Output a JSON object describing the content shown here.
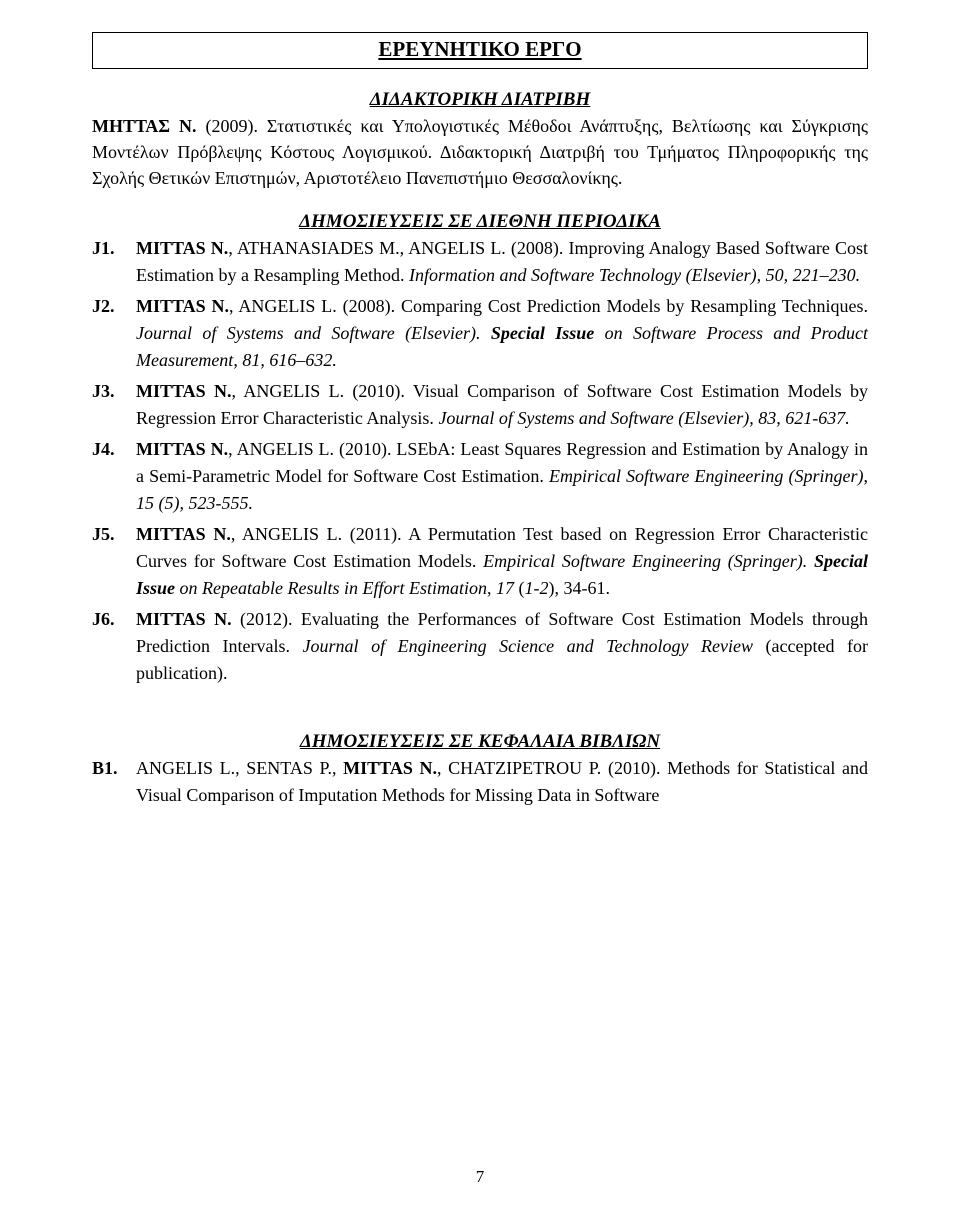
{
  "page_title": "ΕΡΕΥΝΗΤΙΚΟ ΕΡΓΟ",
  "dissertation": {
    "heading": "ΔΙΔΑΚΤΟΡΙΚΗ ΔΙΑΤΡΙΒΗ",
    "author_bold": "ΜΗΤΤΑΣ Ν.",
    "rest": " (2009). Στατιστικές και Υπολογιστικές Μέθοδοι Ανάπτυξης, Βελτίωσης και Σύγκρισης Μοντέλων Πρόβλεψης Κόστους Λογισμικού. Διδακτορική Διατριβή του Τμήματος Πληροφορικής της Σχολής Θετικών Επιστημών, Αριστοτέλειο Πανεπιστήμιο Θεσσαλονίκης."
  },
  "journals": {
    "heading": "ΔΗΜΟΣΙΕΥΣΕΙΣ ΣΕ ΔΙΕΘΝΗ ΠΕΡΙΟΔΙΚΑ",
    "items": [
      {
        "key": "J1.",
        "runs": [
          {
            "t": "MITTAS N.",
            "s": "bold"
          },
          {
            "t": ", ATHANASIADES M., ANGELIS L. (2008). Improving Analogy Based Software Cost Estimation by a Resampling Method. ",
            "s": ""
          },
          {
            "t": "Information and Software Technology (Elsevier), 50, 221–230.",
            "s": "italic"
          }
        ]
      },
      {
        "key": "J2.",
        "runs": [
          {
            "t": "MITTAS N.",
            "s": "bold"
          },
          {
            "t": ", ANGELIS L. (2008). Comparing Cost Prediction Models by Resampling Techniques. ",
            "s": ""
          },
          {
            "t": "Journal of Systems and Software (Elsevier). ",
            "s": "italic"
          },
          {
            "t": "Special Issue",
            "s": "bolditalic"
          },
          {
            "t": " on Software Process and Product Measurement",
            "s": "italic"
          },
          {
            "t": ", ",
            "s": ""
          },
          {
            "t": "81, 616–632.",
            "s": "italic"
          }
        ]
      },
      {
        "key": "J3.",
        "runs": [
          {
            "t": "MITTAS N.",
            "s": "bold"
          },
          {
            "t": ", ANGELIS L. (2010). Visual Comparison of Software Cost Estimation Models by Regression Error Characteristic Analysis. ",
            "s": ""
          },
          {
            "t": "Journal of Systems and Software (Elsevier), 83, 621-637.",
            "s": "italic"
          }
        ]
      },
      {
        "key": "J4.",
        "runs": [
          {
            "t": "MITTAS N.",
            "s": "bold"
          },
          {
            "t": ", ANGELIS L. (2010). LSEbA: Least Squares Regression and Estimation by Analogy in a Semi-Parametric Model for Software Cost Estimation. ",
            "s": ""
          },
          {
            "t": "Empirical Software Engineering (Springer)",
            "s": "italic"
          },
          {
            "t": ", ",
            "s": ""
          },
          {
            "t": "15 (5), 523-555.",
            "s": "italic"
          }
        ]
      },
      {
        "key": "J5.",
        "runs": [
          {
            "t": "MITTAS N.",
            "s": "bold"
          },
          {
            "t": ", ANGELIS L. (2011). A Permutation Test based on Regression Error Characteristic Curves for Software Cost Estimation Models. ",
            "s": ""
          },
          {
            "t": "Empirical Software Engineering (Springer). ",
            "s": "italic"
          },
          {
            "t": "Special Issue",
            "s": "bolditalic"
          },
          {
            "t": " on Repeatable Results in Effort Estimation",
            "s": "italic"
          },
          {
            "t": ", ",
            "s": ""
          },
          {
            "t": "17",
            "s": "italic"
          },
          {
            "t": " (",
            "s": ""
          },
          {
            "t": "1-2",
            "s": "italic"
          },
          {
            "t": "), 34-61.",
            "s": ""
          }
        ]
      },
      {
        "key": "J6.",
        "runs": [
          {
            "t": "MITTAS N.",
            "s": "bold"
          },
          {
            "t": " (2012). Evaluating the Performances of Software Cost Estimation Models through Prediction Intervals. ",
            "s": ""
          },
          {
            "t": "Journal of Engineering Science and Technology Review",
            "s": "italic"
          },
          {
            "t": " (accepted for publication).",
            "s": ""
          }
        ]
      }
    ]
  },
  "chapters": {
    "heading": "ΔΗΜΟΣΙΕΥΣΕΙΣ ΣΕ ΚΕΦΑΛΑΙΑ ΒΙΒΛΙΩΝ",
    "items": [
      {
        "key": "B1.",
        "runs": [
          {
            "t": "ANGELIS L., SENTAS P., ",
            "s": ""
          },
          {
            "t": "MITTAS N.",
            "s": "bold"
          },
          {
            "t": ", CHATZIPETROU P. (2010). Methods for Statistical and Visual Comparison of Imputation Methods for Missing Data in Software",
            "s": ""
          }
        ]
      }
    ]
  },
  "page_number": "7"
}
